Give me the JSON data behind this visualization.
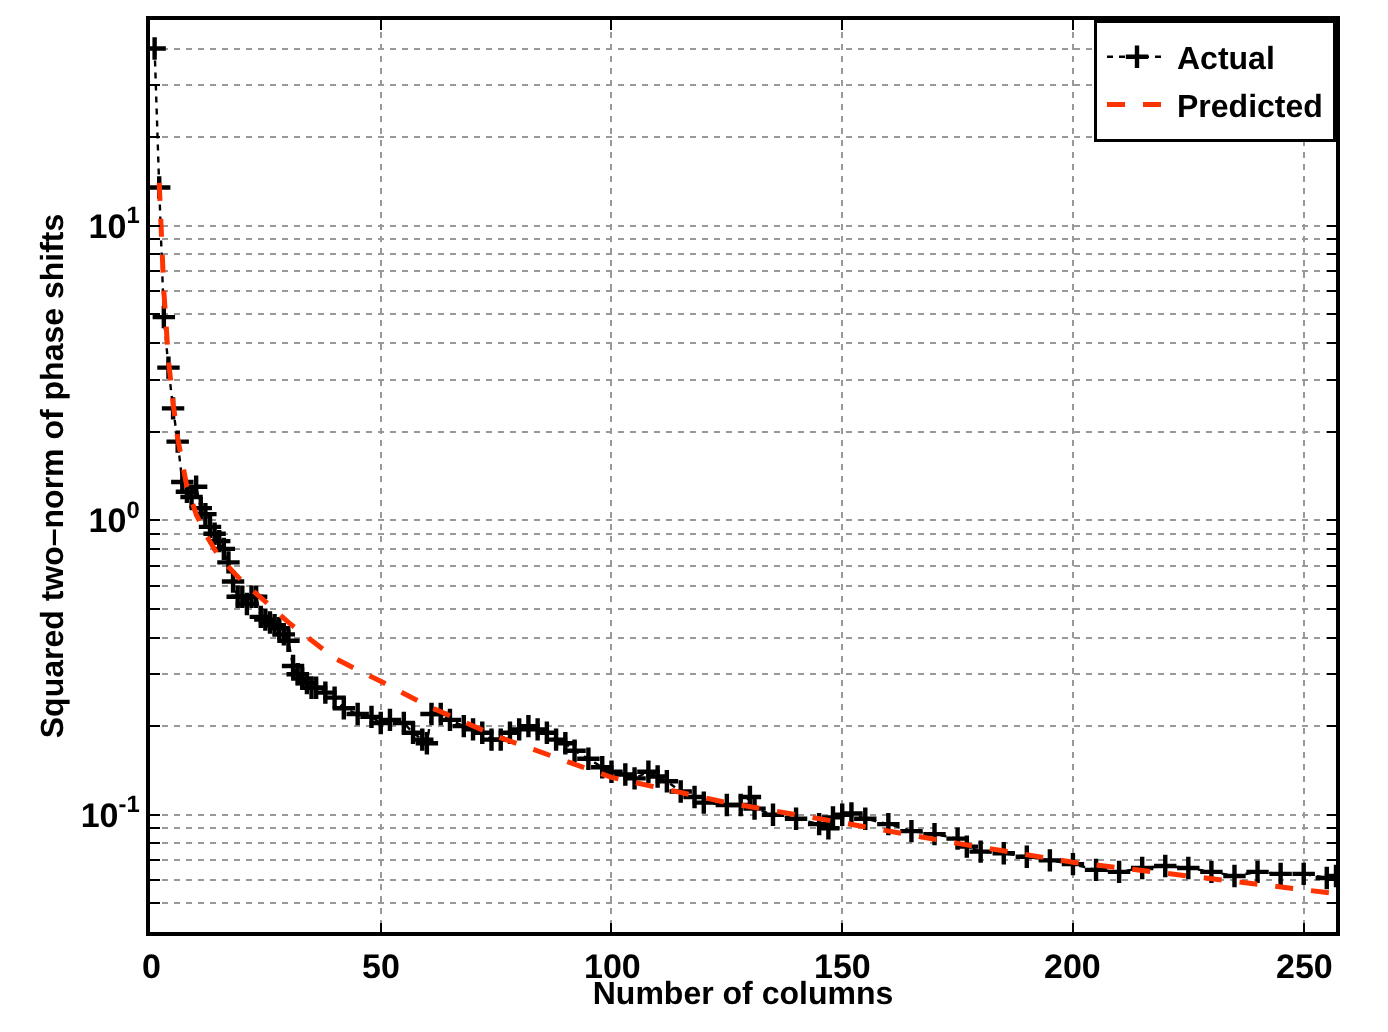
{
  "chart_data": {
    "type": "line",
    "xlabel": "Number of columns",
    "ylabel": "Squared two–norm of phase shifts",
    "log": "y",
    "grid": true,
    "legend": "top right",
    "xlim": [
      0,
      257
    ],
    "xticks": [
      0,
      50,
      100,
      150,
      200,
      250
    ],
    "ylim": [
      0.04,
      50
    ],
    "yticks": [
      {
        "value": 0.04,
        "label": null
      },
      {
        "value": 0.05,
        "label": null
      },
      {
        "value": 0.06,
        "label": null
      },
      {
        "value": 0.07,
        "label": null
      },
      {
        "value": 0.08,
        "label": null
      },
      {
        "value": 0.09,
        "label": null
      },
      {
        "value": 0.1,
        "label": "10$^{-1}$"
      },
      {
        "value": 0.2,
        "label": null
      },
      {
        "value": 0.3,
        "label": null
      },
      {
        "value": 0.4,
        "label": null
      },
      {
        "value": 0.5,
        "label": null
      },
      {
        "value": 0.6,
        "label": null
      },
      {
        "value": 0.7,
        "label": null
      },
      {
        "value": 0.8,
        "label": null
      },
      {
        "value": 0.9,
        "label": null
      },
      {
        "value": 1,
        "label": "10$^{0}$"
      },
      {
        "value": 2,
        "label": null
      },
      {
        "value": 3,
        "label": null
      },
      {
        "value": 4,
        "label": null
      },
      {
        "value": 5,
        "label": null
      },
      {
        "value": 6,
        "label": null
      },
      {
        "value": 7,
        "label": null
      },
      {
        "value": 8,
        "label": null
      },
      {
        "value": 9,
        "label": null
      },
      {
        "value": 10,
        "label": "10$^{1}$"
      },
      {
        "value": 20,
        "label": null
      },
      {
        "value": 30,
        "label": null
      },
      {
        "value": 40,
        "label": null
      }
    ],
    "series": [
      {
        "name": "Actual",
        "color": "#000000",
        "marker": "cross",
        "line_style": "dotted",
        "x": [
          1,
          2,
          3,
          4,
          5,
          6,
          7,
          8,
          9,
          10,
          11,
          12,
          13,
          14,
          15,
          16,
          17,
          18,
          19,
          20,
          21,
          22,
          23,
          24,
          25,
          26,
          27,
          28,
          29,
          30,
          31,
          32,
          33,
          34,
          35,
          36,
          38,
          40,
          42,
          45,
          48,
          50,
          52,
          55,
          57,
          59,
          60,
          61,
          63,
          65,
          68,
          70,
          72,
          74,
          76,
          78,
          80,
          82,
          84,
          86,
          88,
          90,
          92,
          95,
          98,
          100,
          103,
          105,
          108,
          110,
          112,
          115,
          118,
          120,
          125,
          128,
          130,
          131,
          135,
          140,
          145,
          147,
          148,
          150,
          152,
          155,
          160,
          165,
          170,
          175,
          177,
          180,
          185,
          190,
          195,
          200,
          205,
          210,
          215,
          220,
          225,
          230,
          235,
          240,
          245,
          250,
          255,
          257
        ],
        "values": [
          40,
          13.5,
          4.9,
          3.3,
          2.4,
          1.85,
          1.35,
          1.25,
          1.2,
          1.3,
          1.1,
          1.05,
          0.95,
          0.9,
          0.85,
          0.8,
          0.72,
          0.62,
          0.55,
          0.55,
          0.52,
          0.55,
          0.55,
          0.47,
          0.46,
          0.45,
          0.44,
          0.43,
          0.41,
          0.39,
          0.32,
          0.3,
          0.29,
          0.28,
          0.27,
          0.27,
          0.26,
          0.25,
          0.23,
          0.22,
          0.215,
          0.205,
          0.21,
          0.205,
          0.19,
          0.18,
          0.175,
          0.22,
          0.22,
          0.21,
          0.2,
          0.195,
          0.19,
          0.18,
          0.18,
          0.19,
          0.195,
          0.2,
          0.195,
          0.19,
          0.18,
          0.175,
          0.165,
          0.155,
          0.145,
          0.14,
          0.137,
          0.133,
          0.14,
          0.135,
          0.13,
          0.12,
          0.115,
          0.11,
          0.108,
          0.108,
          0.115,
          0.105,
          0.1,
          0.097,
          0.093,
          0.09,
          0.098,
          0.1,
          0.101,
          0.097,
          0.093,
          0.088,
          0.086,
          0.083,
          0.078,
          0.075,
          0.074,
          0.072,
          0.07,
          0.068,
          0.065,
          0.064,
          0.066,
          0.067,
          0.066,
          0.064,
          0.062,
          0.064,
          0.063,
          0.063,
          0.061,
          0.062
        ]
      },
      {
        "name": "Predicted",
        "color": "#ff3300",
        "marker": "none",
        "line_style": "dashed",
        "x": [
          2,
          3,
          4,
          5,
          6,
          8,
          10,
          12,
          15,
          20,
          25,
          30,
          40,
          50,
          60,
          75,
          100,
          125,
          150,
          175,
          200,
          225,
          257
        ],
        "values": [
          14,
          6,
          3.5,
          2.5,
          1.9,
          1.3,
          1.05,
          0.9,
          0.75,
          0.62,
          0.53,
          0.45,
          0.34,
          0.284,
          0.235,
          0.185,
          0.134,
          0.11,
          0.094,
          0.08,
          0.069,
          0.062,
          0.054
        ]
      }
    ]
  }
}
